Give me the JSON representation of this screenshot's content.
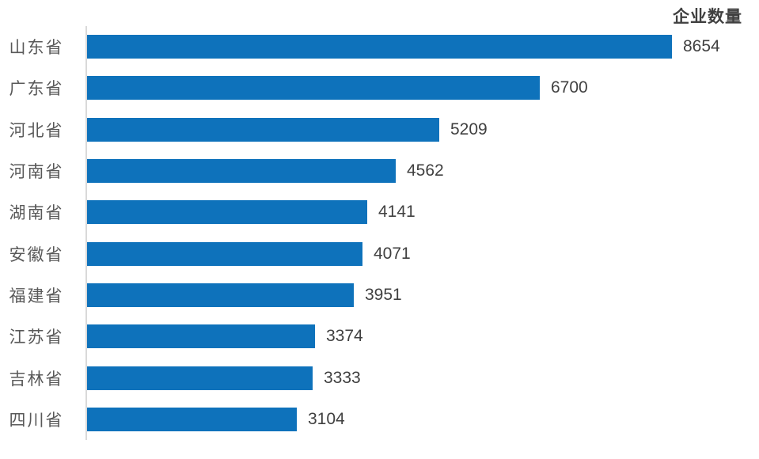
{
  "chart_data": {
    "type": "bar",
    "orientation": "horizontal",
    "title": "企业数量",
    "categories": [
      "山东省",
      "广东省",
      "河北省",
      "河南省",
      "湖南省",
      "安徽省",
      "福建省",
      "江苏省",
      "吉林省",
      "四川省"
    ],
    "values": [
      8654,
      6700,
      5209,
      4562,
      4141,
      4071,
      3951,
      3374,
      3333,
      3104
    ],
    "value_labels_visible": true,
    "legend": "none",
    "grid": "off",
    "xlabel": "",
    "ylabel": "",
    "colors": {
      "bar": "#0E72BB",
      "axis_line": "#D9D9D9",
      "category_label": "#595959",
      "value_label": "#404040",
      "title": "#404040",
      "background": "#FFFFFF"
    }
  }
}
